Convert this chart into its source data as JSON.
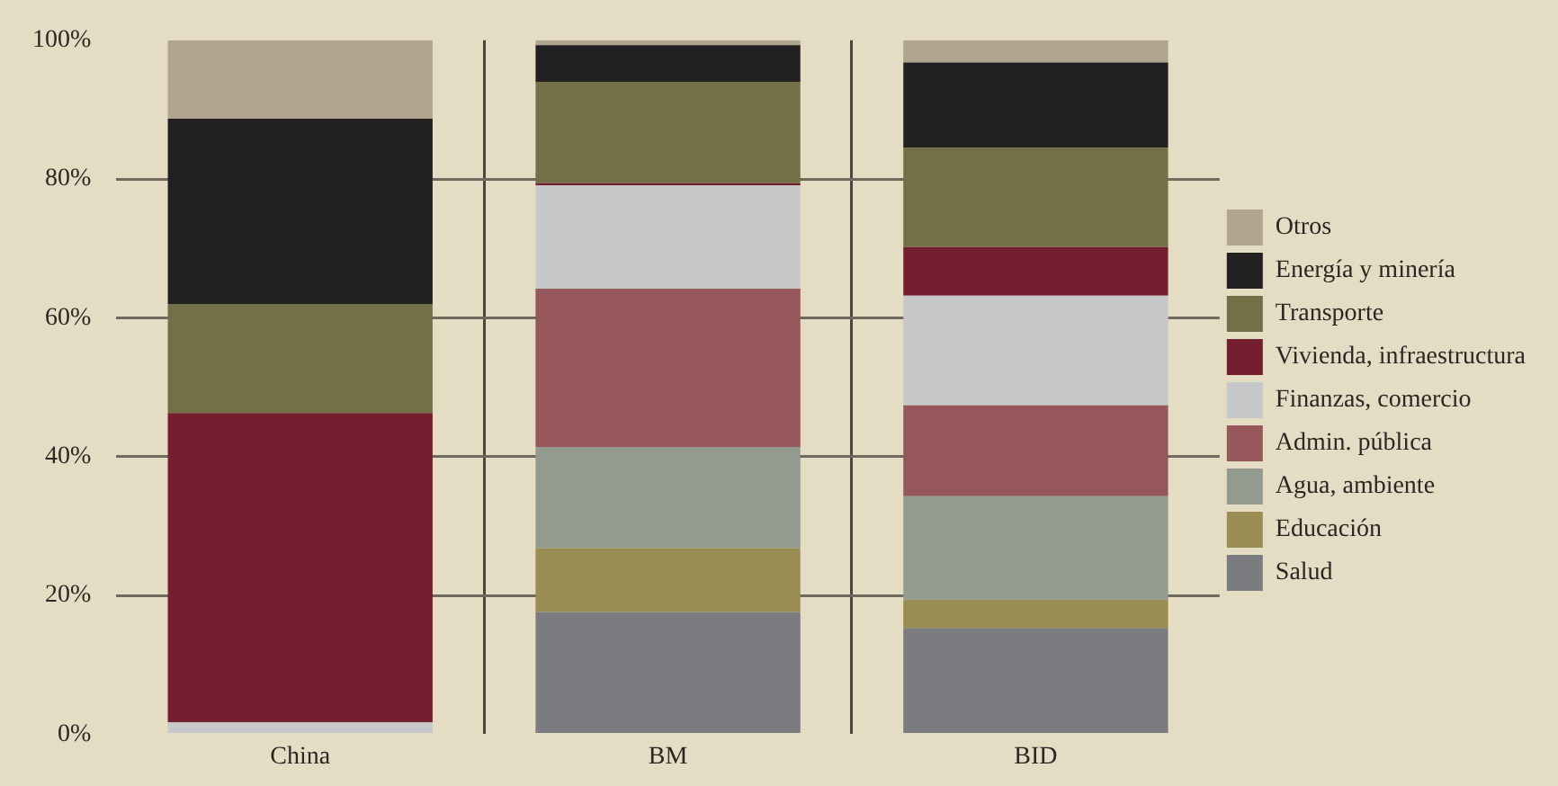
{
  "chart_data": {
    "type": "bar",
    "stacked": true,
    "categories": [
      "China",
      "BM",
      "BID"
    ],
    "series": [
      {
        "name": "Salud",
        "color": "#7b7c80",
        "values": [
          0,
          17.6,
          15.3
        ]
      },
      {
        "name": "Educación",
        "color": "#9a8d53",
        "values": [
          0,
          9.2,
          4.1
        ]
      },
      {
        "name": "Agua, ambiente",
        "color": "#939a8f",
        "values": [
          0,
          14.6,
          14.9
        ]
      },
      {
        "name": "Admin. pública",
        "color": "#96575a",
        "values": [
          0,
          22.8,
          13.1
        ]
      },
      {
        "name": "Finanzas, comercio",
        "color": "#c7c8ca",
        "values": [
          1.7,
          14.9,
          15.8
        ]
      },
      {
        "name": "Vivienda, infraestructura",
        "color": "#731f2f",
        "values": [
          44.6,
          0.3,
          7.0
        ]
      },
      {
        "name": "Transporte",
        "color": "#737048",
        "values": [
          15.7,
          14.6,
          14.3
        ]
      },
      {
        "name": "Energía y minería",
        "color": "#222021",
        "values": [
          26.7,
          5.3,
          12.3
        ]
      },
      {
        "name": "Otros",
        "color": "#b0a58e",
        "values": [
          11.3,
          0.7,
          3.2
        ]
      }
    ],
    "ylim": [
      0,
      100
    ],
    "yticks": [
      {
        "value": 0,
        "label": "0%"
      },
      {
        "value": 20,
        "label": "20%"
      },
      {
        "value": 40,
        "label": "40%"
      },
      {
        "value": 60,
        "label": "60%"
      },
      {
        "value": 80,
        "label": "80%"
      },
      {
        "value": 100,
        "label": "100%"
      }
    ],
    "grid": true,
    "legend": "right"
  }
}
